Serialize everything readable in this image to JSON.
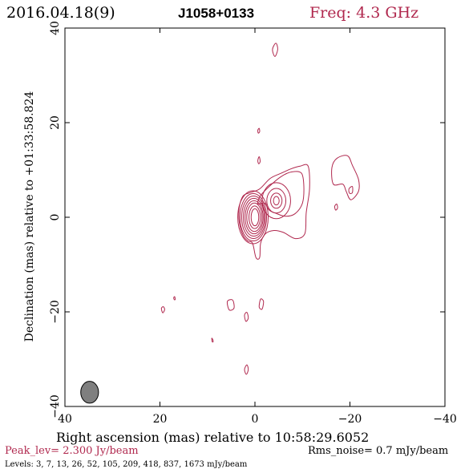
{
  "header": {
    "date": "2016.04.18(9)",
    "source": "J1058+0133",
    "freq": "Freq: 4.3 GHz"
  },
  "axes": {
    "xlabel": "Right ascension (mas) relative to 10:58:29.6052",
    "ylabel": "Declination (mas) relative to +01:33:58.824"
  },
  "footer": {
    "peak": "Peak_lev=  2.300 Jy/beam",
    "rms": "Rms_noise=  0.7 mJy/beam",
    "levels": "Levels:   3,   7,  13,  26,  52, 105, 209, 418, 837, 1673 mJy/beam"
  },
  "colors": {
    "accent": "#b0284e",
    "contour": "#b0284e",
    "axis": "#000000",
    "beam_fill": "#7f7f7f"
  },
  "chart_data": {
    "type": "contour",
    "x_axis": {
      "label": "Right ascension (mas) relative to 10:58:29.6052",
      "range": [
        40,
        -40
      ],
      "ticks": [
        40,
        20,
        0,
        -20,
        -40
      ],
      "tick_labels": [
        "40",
        "20",
        "0",
        "−20",
        "−40"
      ]
    },
    "y_axis": {
      "label": "Declination (mas) relative to +01:33:58.824",
      "range": [
        -40,
        40
      ],
      "ticks": [
        -40,
        -20,
        0,
        20,
        40
      ],
      "tick_labels": [
        "−40",
        "−20",
        "0",
        "20",
        "40"
      ]
    },
    "peak_jy_per_beam": 2.3,
    "rms_noise_mjy_per_beam": 0.7,
    "levels_mjy_per_beam": [
      3,
      7,
      13,
      26,
      52,
      105,
      209,
      418,
      837,
      1673
    ],
    "core": {
      "x": 0,
      "y": 0,
      "rings": [
        [
          0.8,
          1.8
        ],
        [
          1.2,
          2.4
        ],
        [
          1.6,
          3.0
        ],
        [
          1.9,
          3.5
        ],
        [
          2.2,
          4.0
        ],
        [
          2.5,
          4.5
        ],
        [
          2.8,
          5.0
        ],
        [
          3.2,
          5.6
        ]
      ]
    },
    "jet_components": [
      {
        "x": -4.5,
        "y": 3.5,
        "rings": [
          [
            0.6,
            0.9
          ],
          [
            1.2,
            1.6
          ],
          [
            2.0,
            2.6
          ],
          [
            3.0,
            3.8
          ]
        ]
      }
    ],
    "contour_islands": [
      {
        "name": "core-jet-envelope",
        "points": [
          [
            2.5,
            4.5
          ],
          [
            3.3,
            2
          ],
          [
            3.3,
            -1
          ],
          [
            2.5,
            -3.8
          ],
          [
            1.5,
            -5
          ],
          [
            0.5,
            -5.5
          ],
          [
            -0.2,
            -8.5
          ],
          [
            -1.0,
            -8.5
          ],
          [
            -1.2,
            -5.5
          ],
          [
            -2.2,
            -3.5
          ],
          [
            -4,
            -2.8
          ],
          [
            -6,
            -3.2
          ],
          [
            -8.5,
            -4.5
          ],
          [
            -10.5,
            -3.5
          ],
          [
            -10.8,
            1
          ],
          [
            -11.5,
            6
          ],
          [
            -11.2,
            10.8
          ],
          [
            -9.5,
            10.8
          ],
          [
            -7.5,
            10.2
          ],
          [
            -5.5,
            9.3
          ],
          [
            -3.2,
            8.2
          ],
          [
            -1,
            6
          ],
          [
            1,
            5.2
          ]
        ]
      },
      {
        "name": "jet-inner",
        "points": [
          [
            -0.6,
            2.8
          ],
          [
            -2,
            3
          ],
          [
            -3,
            1.5
          ],
          [
            -4.5,
            0.8
          ],
          [
            -6.5,
            0.2
          ],
          [
            -8.5,
            0.8
          ],
          [
            -10,
            3
          ],
          [
            -10.3,
            6.5
          ],
          [
            -9.8,
            9.3
          ],
          [
            -7.8,
            9.6
          ],
          [
            -5.5,
            8.6
          ],
          [
            -3,
            6.5
          ],
          [
            -1.2,
            4.6
          ]
        ]
      },
      {
        "name": "eastern-feature",
        "points": [
          [
            -16.5,
            7
          ],
          [
            -16.2,
            10.5
          ],
          [
            -17.3,
            12.5
          ],
          [
            -19.5,
            13
          ],
          [
            -20.5,
            11
          ],
          [
            -21.8,
            8
          ],
          [
            -21.8,
            5.5
          ],
          [
            -20.2,
            3.7
          ],
          [
            -19.2,
            5.5
          ],
          [
            -18.5,
            7
          ]
        ]
      },
      {
        "name": "eastern-feature-inner",
        "points": [
          [
            -19.8,
            6
          ],
          [
            -20.5,
            6.5
          ],
          [
            -20.5,
            5.2
          ],
          [
            -19.9,
            5.1
          ]
        ]
      },
      {
        "name": "island-north-35",
        "points": [
          [
            -3.7,
            35.5
          ],
          [
            -4.4,
            36.8
          ],
          [
            -4.8,
            35.5
          ],
          [
            -4.2,
            34
          ]
        ]
      },
      {
        "name": "island-north-18",
        "points": [
          [
            -0.6,
            18.4
          ],
          [
            -0.9,
            18.8
          ],
          [
            -1.0,
            18.1
          ],
          [
            -0.7,
            17.8
          ]
        ]
      },
      {
        "name": "island-north-12",
        "points": [
          [
            -0.6,
            12
          ],
          [
            -0.9,
            12.8
          ],
          [
            -1.1,
            11.8
          ],
          [
            -0.8,
            11.3
          ]
        ]
      },
      {
        "name": "island-east-small",
        "points": [
          [
            -16.8,
            2.3
          ],
          [
            -17.2,
            2.8
          ],
          [
            -17.4,
            2
          ],
          [
            -17.0,
            1.5
          ]
        ]
      },
      {
        "name": "island-sw-20",
        "points": [
          [
            19.7,
            -19.3
          ],
          [
            19.3,
            -18.9
          ],
          [
            19.0,
            -19.5
          ],
          [
            19.4,
            -20.2
          ]
        ]
      },
      {
        "name": "island-17",
        "points": [
          [
            17.1,
            -17.0
          ],
          [
            16.9,
            -16.8
          ],
          [
            16.8,
            -17.4
          ],
          [
            17.0,
            -17.4
          ]
        ]
      },
      {
        "name": "island-18",
        "points": [
          [
            4.7,
            -17.5
          ],
          [
            5.8,
            -17.8
          ],
          [
            5.4,
            -19.6
          ],
          [
            4.4,
            -19.2
          ]
        ]
      },
      {
        "name": "island-18b",
        "points": [
          [
            -1.2,
            -17.3
          ],
          [
            -1.8,
            -17.8
          ],
          [
            -1.5,
            -19.4
          ],
          [
            -0.9,
            -19.0
          ]
        ]
      },
      {
        "name": "island-21",
        "points": [
          [
            1.7,
            -20.1
          ],
          [
            2.2,
            -20.7
          ],
          [
            1.9,
            -22
          ],
          [
            1.4,
            -21.3
          ]
        ]
      },
      {
        "name": "island-26",
        "points": [
          [
            9.1,
            -25.6
          ],
          [
            8.9,
            -25.8
          ],
          [
            8.8,
            -26.3
          ],
          [
            9.0,
            -26.3
          ]
        ]
      },
      {
        "name": "island-32",
        "points": [
          [
            1.7,
            -31.2
          ],
          [
            2.2,
            -32.2
          ],
          [
            1.8,
            -33.2
          ],
          [
            1.4,
            -32.2
          ]
        ]
      }
    ],
    "beam": {
      "x": 34.8,
      "y": -37,
      "major_mas": 4.2,
      "minor_mas": 1.7,
      "pa_deg": 0
    }
  }
}
